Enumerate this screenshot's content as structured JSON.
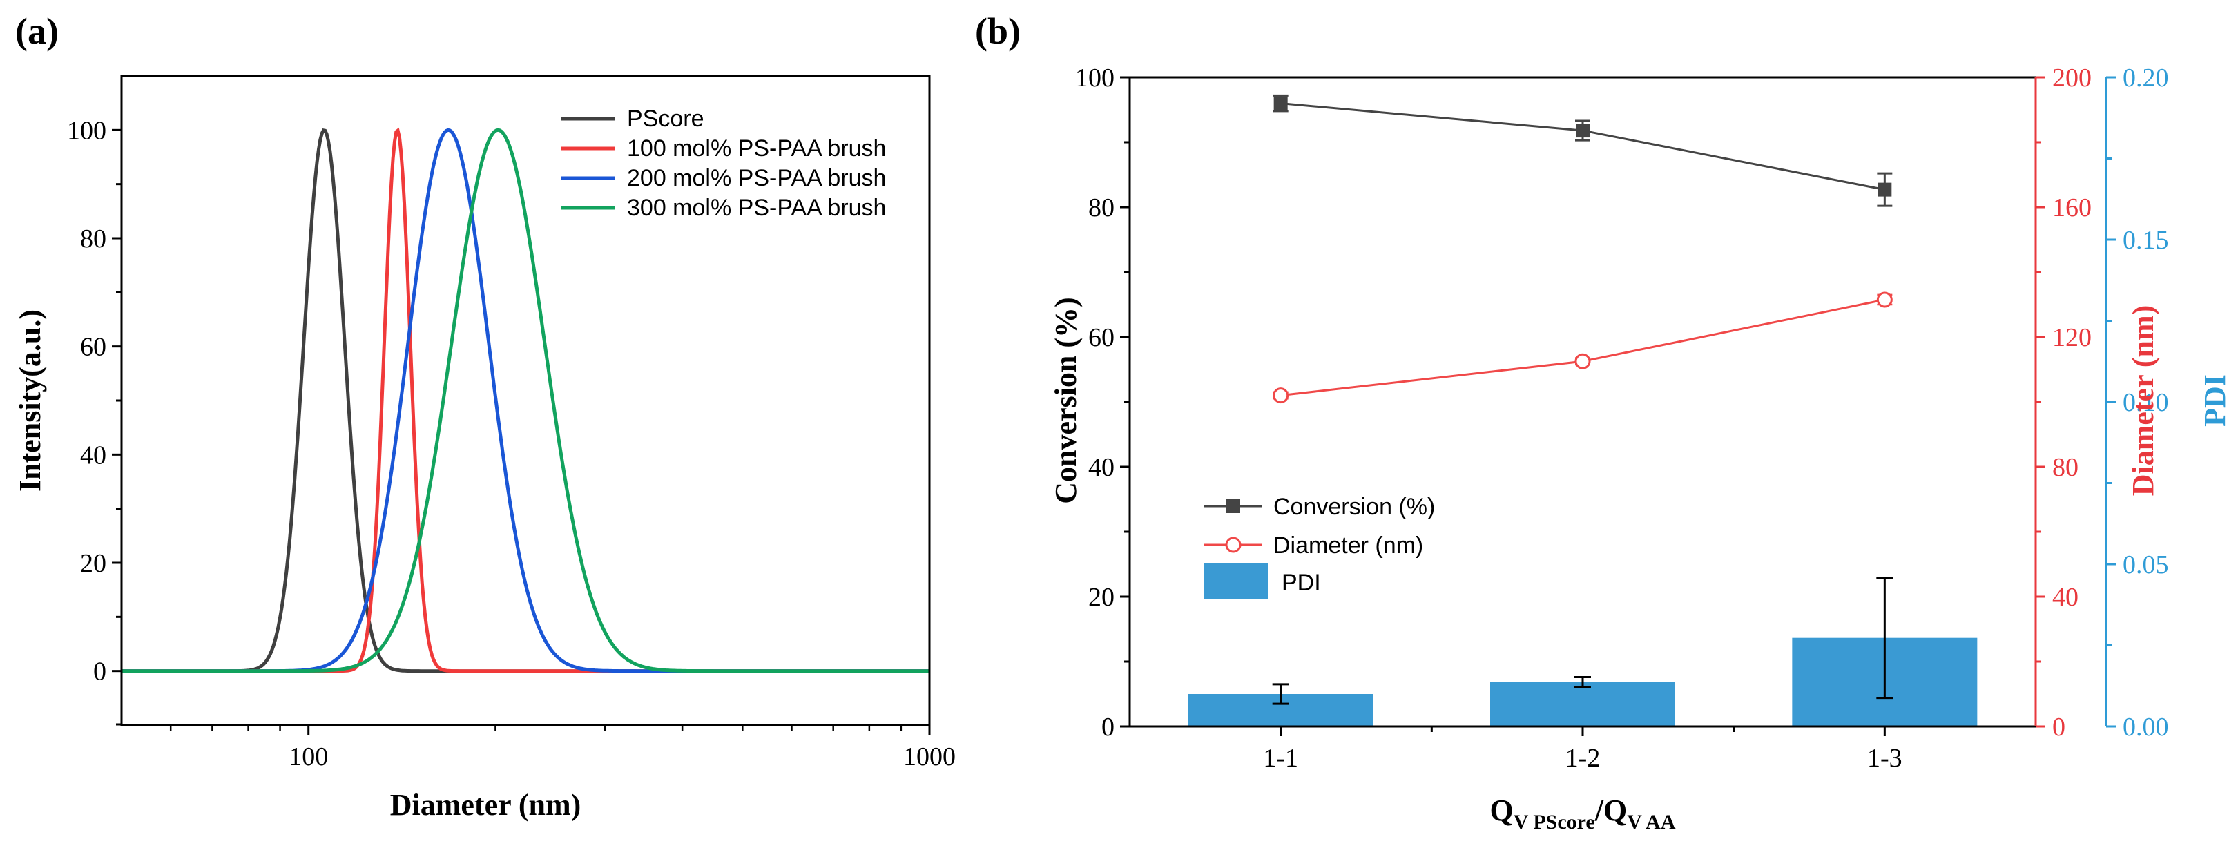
{
  "chart_data": [
    {
      "panel_label": "(a)",
      "type": "line",
      "xlabel": "Diameter (nm)",
      "ylabel": "Intensity(a.u.)",
      "xscale": "log",
      "xlim": [
        50,
        1000
      ],
      "ylim": [
        -10,
        110
      ],
      "xticks": [
        100,
        1000
      ],
      "xtick_labels": [
        "100",
        "1000"
      ],
      "yticks": [
        0,
        20,
        40,
        60,
        80,
        100
      ],
      "ytick_labels": [
        "0",
        "20",
        "40",
        "60",
        "80",
        "100"
      ],
      "legend_position": "top-right",
      "series": [
        {
          "name": "PScore",
          "color": "#404040",
          "peak_diameter": 106,
          "log_sigma": 0.033,
          "peak_intensity": 100
        },
        {
          "name": "100 mol% PS-PAA brush",
          "color": "#f03a3a",
          "peak_diameter": 139,
          "log_sigma": 0.021,
          "peak_intensity": 100
        },
        {
          "name": "200 mol% PS-PAA brush",
          "color": "#1a56d6",
          "peak_diameter": 168,
          "log_sigma": 0.065,
          "peak_intensity": 100
        },
        {
          "name": "300 mol% PS-PAA brush",
          "color": "#12a35e",
          "peak_diameter": 202,
          "log_sigma": 0.075,
          "peak_intensity": 100
        }
      ]
    },
    {
      "panel_label": "(b)",
      "type": "bar+line",
      "categories": [
        "1-1",
        "1-2",
        "1-3"
      ],
      "xlabel_main": "Q",
      "xlabel_sub1": "V  PScore",
      "xlabel_mid": "/Q",
      "xlabel_sub2": "V  AA",
      "legend_position": "left",
      "axes": {
        "left": {
          "label": "Conversion (%)",
          "lim": [
            0,
            100
          ],
          "ticks": [
            "0",
            "20",
            "40",
            "60",
            "80",
            "100"
          ],
          "color": "#000000"
        },
        "right1": {
          "label": "Diameter (nm)",
          "lim": [
            0,
            200
          ],
          "ticks": [
            "0",
            "40",
            "80",
            "120",
            "160",
            "200"
          ],
          "color": "#e8383d"
        },
        "right2": {
          "label": "PDI",
          "lim": [
            0,
            0.2
          ],
          "ticks": [
            "0.00",
            "0.05",
            "0.10",
            "0.15",
            "0.20"
          ],
          "color": "#2e9bd6"
        }
      },
      "series": [
        {
          "name": "Conversion (%)",
          "type": "line",
          "marker": "filled-square",
          "color": "#444444",
          "axis": "left",
          "values": [
            96.0,
            91.8,
            82.7
          ],
          "errors": [
            1.2,
            1.5,
            2.5
          ]
        },
        {
          "name": "Diameter (nm)",
          "type": "line",
          "marker": "open-circle",
          "color": "#f04848",
          "axis": "right1",
          "values": [
            102,
            112.5,
            131.5
          ],
          "errors": [
            1.0,
            1.0,
            1.5
          ]
        },
        {
          "name": "PDI",
          "type": "bar",
          "color": "#3a9ad3",
          "axis": "right2",
          "values": [
            0.01,
            0.0137,
            0.0273
          ],
          "errors": [
            0.003,
            0.0015,
            0.0185
          ]
        }
      ]
    }
  ]
}
